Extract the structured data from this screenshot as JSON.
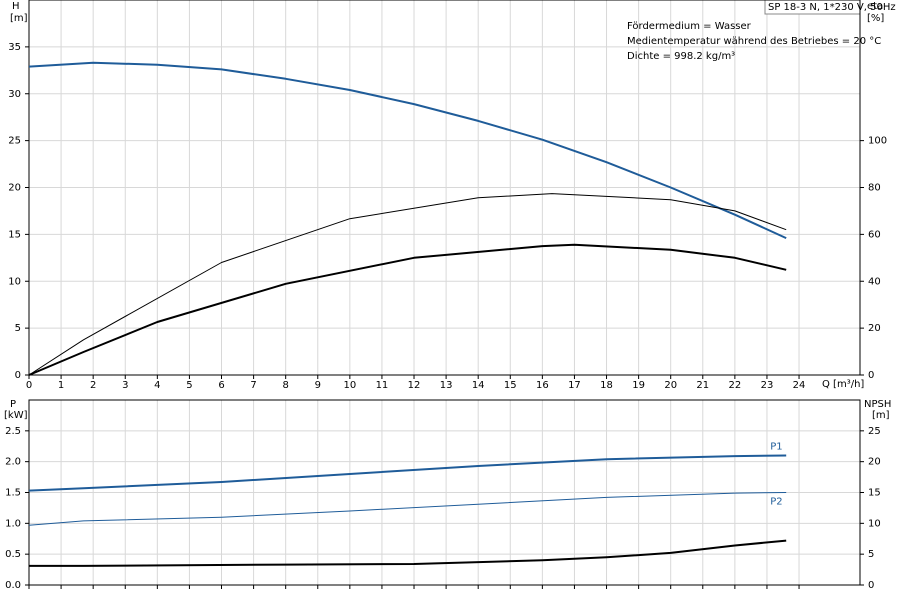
{
  "chart_data": [
    {
      "type": "line",
      "x_label": "Q [m³/h]",
      "y_label": "H",
      "y_unit": "[m]",
      "y2_label": "eta",
      "y2_unit": "[%]",
      "xlim": [
        0,
        25.9
      ],
      "xticks": [
        0,
        1,
        2,
        3,
        4,
        5,
        6,
        7,
        8,
        9,
        10,
        11,
        12,
        13,
        14,
        15,
        16,
        17,
        18,
        19,
        20,
        21,
        22,
        23,
        24
      ],
      "ylim": [
        0,
        40
      ],
      "yticks": [
        0,
        5,
        10,
        15,
        20,
        25,
        30,
        35
      ],
      "y2lim": [
        0,
        160
      ],
      "y2ticks": [
        0,
        20,
        40,
        60,
        80,
        100
      ],
      "grid": true,
      "series": [
        {
          "color": "#1f5c99",
          "x": [
            0,
            2,
            4,
            6,
            8,
            10,
            12,
            14,
            16,
            18,
            20,
            22,
            23.6
          ],
          "values": [
            32.9,
            33.3,
            33.1,
            32.6,
            31.6,
            30.4,
            28.9,
            27.1,
            25.1,
            22.7,
            20.0,
            17.1,
            14.6
          ]
        },
        {
          "color": "#000000",
          "axis": "y2",
          "x": [
            0,
            1.7,
            6,
            10,
            14,
            16.3,
            20,
            22,
            23.6
          ],
          "values": [
            0,
            15,
            48,
            66.7,
            75.6,
            77.4,
            74.8,
            70,
            62
          ]
        },
        {
          "color": "#000000",
          "axis": "y2",
          "x": [
            0,
            1.7,
            4,
            8,
            12,
            16,
            17,
            20,
            22,
            23.6
          ],
          "values": [
            0,
            9.8,
            22.6,
            38.9,
            50,
            55,
            55.6,
            53.4,
            50,
            44.9
          ]
        }
      ]
    },
    {
      "type": "line",
      "y_label": "P",
      "y_unit": "[kW]",
      "y2_label": "NPSH",
      "y2_unit": "[m]",
      "xlim": [
        0,
        25.9
      ],
      "xticks": [
        0,
        1,
        2,
        3,
        4,
        5,
        6,
        7,
        8,
        9,
        10,
        11,
        12,
        13,
        14,
        15,
        16,
        17,
        18,
        19,
        20,
        21,
        22,
        23,
        24
      ],
      "ylim": [
        0,
        3
      ],
      "yticks": [
        {
          "value": 0,
          "label": "0.0"
        },
        {
          "value": 0.5,
          "label": "0.5"
        },
        {
          "value": 1,
          "label": "1.0"
        },
        {
          "value": 1.5,
          "label": "1.5"
        },
        {
          "value": 2,
          "label": "2.0"
        },
        {
          "value": 2.5,
          "label": "2.5"
        }
      ],
      "y2lim": [
        0,
        30
      ],
      "y2ticks": [
        0,
        5,
        10,
        15,
        20,
        25
      ],
      "grid": true,
      "series": [
        {
          "name": "P1",
          "color": "#1f5c99",
          "x": [
            0,
            1.7,
            6,
            10,
            14,
            18,
            22,
            23.6
          ],
          "values": [
            1.53,
            1.57,
            1.67,
            1.8,
            1.93,
            2.04,
            2.09,
            2.1
          ]
        },
        {
          "name": "P2",
          "color": "#1f5c99",
          "x": [
            0,
            1.7,
            6,
            10,
            14,
            18,
            22,
            23.6
          ],
          "values": [
            0.97,
            1.04,
            1.1,
            1.2,
            1.31,
            1.42,
            1.49,
            1.5
          ]
        },
        {
          "color": "#000000",
          "axis": "y2",
          "x": [
            0,
            1.7,
            8,
            12,
            16,
            18,
            20,
            22,
            23.6
          ],
          "values": [
            3.1,
            3.1,
            3.3,
            3.4,
            4.0,
            4.5,
            5.2,
            6.4,
            7.2
          ]
        }
      ]
    }
  ],
  "info": {
    "model": "SP 18-3 N, 1*230 V, 50Hz",
    "lines": [
      "Fördermedium = Wasser",
      "Medientemperatur während des Betriebes = 20 °C",
      "Dichte = 998.2 kg/m³"
    ]
  }
}
